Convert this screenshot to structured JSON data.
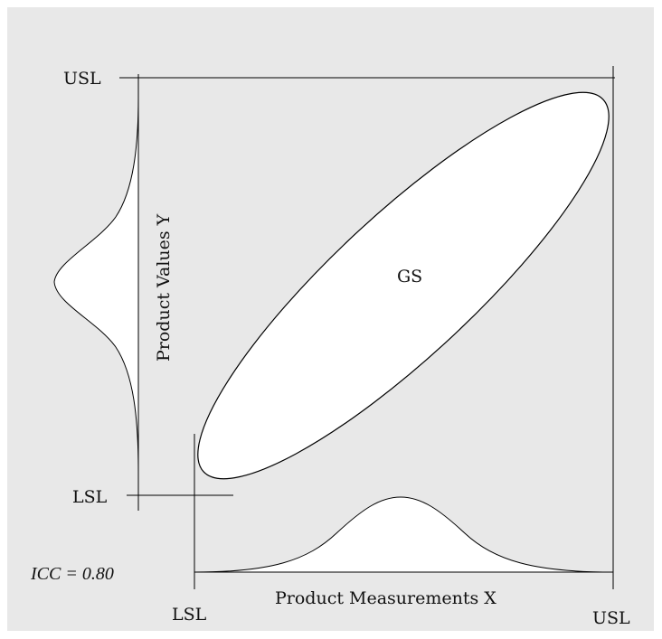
{
  "colors": {
    "background": "#e8e8e8",
    "stroke": "#000000",
    "fill": "#ffffff",
    "text": "#111111"
  },
  "labels": {
    "usl_left": "USL",
    "lsl_left": "LSL",
    "lsl_bottom": "LSL",
    "usl_bottom": "USL",
    "y_axis": "Product Values Y",
    "x_axis": "Product Measurements X",
    "ellipse": "GS",
    "icc": "ICC = 0.80"
  }
}
